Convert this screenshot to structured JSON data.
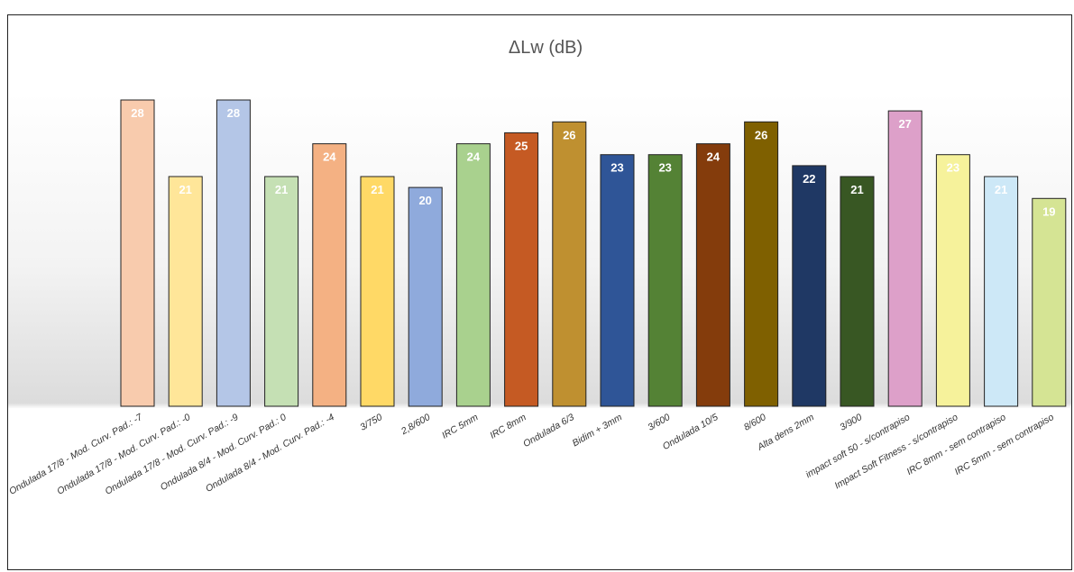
{
  "chart_data": {
    "type": "bar",
    "title": "ΔLw (dB)",
    "xlabel": "",
    "ylabel": "",
    "ylim": [
      0,
      28
    ],
    "grid": false,
    "legend": "none",
    "categories": [
      "Ondulada 17/8 - Mod. Curv. Pad.: -7",
      "Ondulada 17/8 - Mod. Curv. Pad.: -0",
      "Ondulada 17/8 - Mod. Curv. Pad.: -9",
      "Ondulada 8/4 - Mod. Curv. Pad.: 0",
      "Ondulada 8/4 - Mod. Curv. Pad.: -4",
      "3/750",
      "2,8/600",
      "IRC 5mm",
      "IRC 8mm",
      "Ondulada 6/3",
      "Bidim + 3mm",
      "3/600",
      "Ondulada 10/5",
      "8/600",
      "Alta dens 2mm",
      "3/900",
      "impact soft 50 - s/contrapiso",
      "Impact Soft Fitness - s/contrapiso",
      "IRC 8mm - sem contrapiso",
      "IRC 5mm - sem contrapiso"
    ],
    "values": [
      28,
      21,
      28,
      21,
      24,
      21,
      20,
      24,
      25,
      26,
      23,
      23,
      24,
      26,
      22,
      21,
      27,
      23,
      21,
      19
    ],
    "colors": [
      "#f8cbad",
      "#ffe699",
      "#b4c6e7",
      "#c5e0b4",
      "#f4b183",
      "#ffd966",
      "#8faadc",
      "#a9d18e",
      "#c55a23",
      "#bf9030",
      "#2f5597",
      "#548235",
      "#843c0c",
      "#7f6000",
      "#1f3864",
      "#385723",
      "#dda0c9",
      "#f6f29b",
      "#cde8f7",
      "#d5e494"
    ],
    "label_colors": [
      "#ffffff",
      "#ffffff",
      "#ffffff",
      "#ffffff",
      "#ffffff",
      "#ffffff",
      "#ffffff",
      "#ffffff",
      "#ffffff",
      "#ffffff",
      "#ffffff",
      "#ffffff",
      "#ffffff",
      "#ffffff",
      "#ffffff",
      "#ffffff",
      "#ffffff",
      "#ffffff",
      "#ffffff",
      "#ffffff"
    ]
  }
}
